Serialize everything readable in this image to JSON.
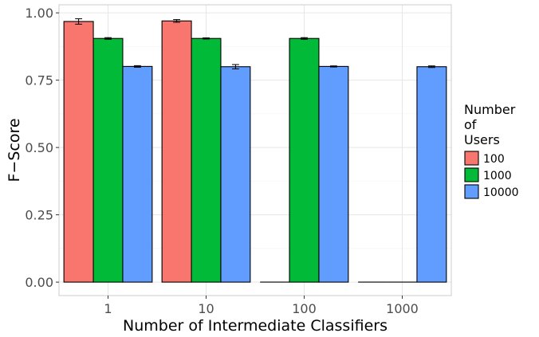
{
  "chart_data": {
    "type": "bar",
    "categories": [
      "1",
      "10",
      "100",
      "1000"
    ],
    "xlabel": "Number of Intermediate Classifiers",
    "ylabel": "F−Score",
    "ylim": [
      -0.05,
      1.03
    ],
    "yticks": [
      0.0,
      0.25,
      0.5,
      0.75,
      1.0
    ],
    "ytick_labels": [
      "0.00",
      "0.25",
      "0.50",
      "0.75",
      "1.00"
    ],
    "grid": true,
    "legend": {
      "title_lines": [
        "Number",
        "of",
        "Users"
      ],
      "placement": "right"
    },
    "series": [
      {
        "name": "100",
        "color": "#F8766D",
        "values": [
          0.968,
          0.97,
          0.0,
          0.0
        ],
        "errors": [
          0.01,
          0.005,
          0.0,
          0.0
        ]
      },
      {
        "name": "1000",
        "color": "#00BA38",
        "values": [
          0.905,
          0.905,
          0.905,
          0.0
        ],
        "errors": [
          0.003,
          0.002,
          0.003,
          0.0
        ]
      },
      {
        "name": "10000",
        "color": "#619CFF",
        "values": [
          0.801,
          0.8,
          0.801,
          0.8
        ],
        "errors": [
          0.003,
          0.008,
          0.002,
          0.003
        ]
      }
    ]
  }
}
